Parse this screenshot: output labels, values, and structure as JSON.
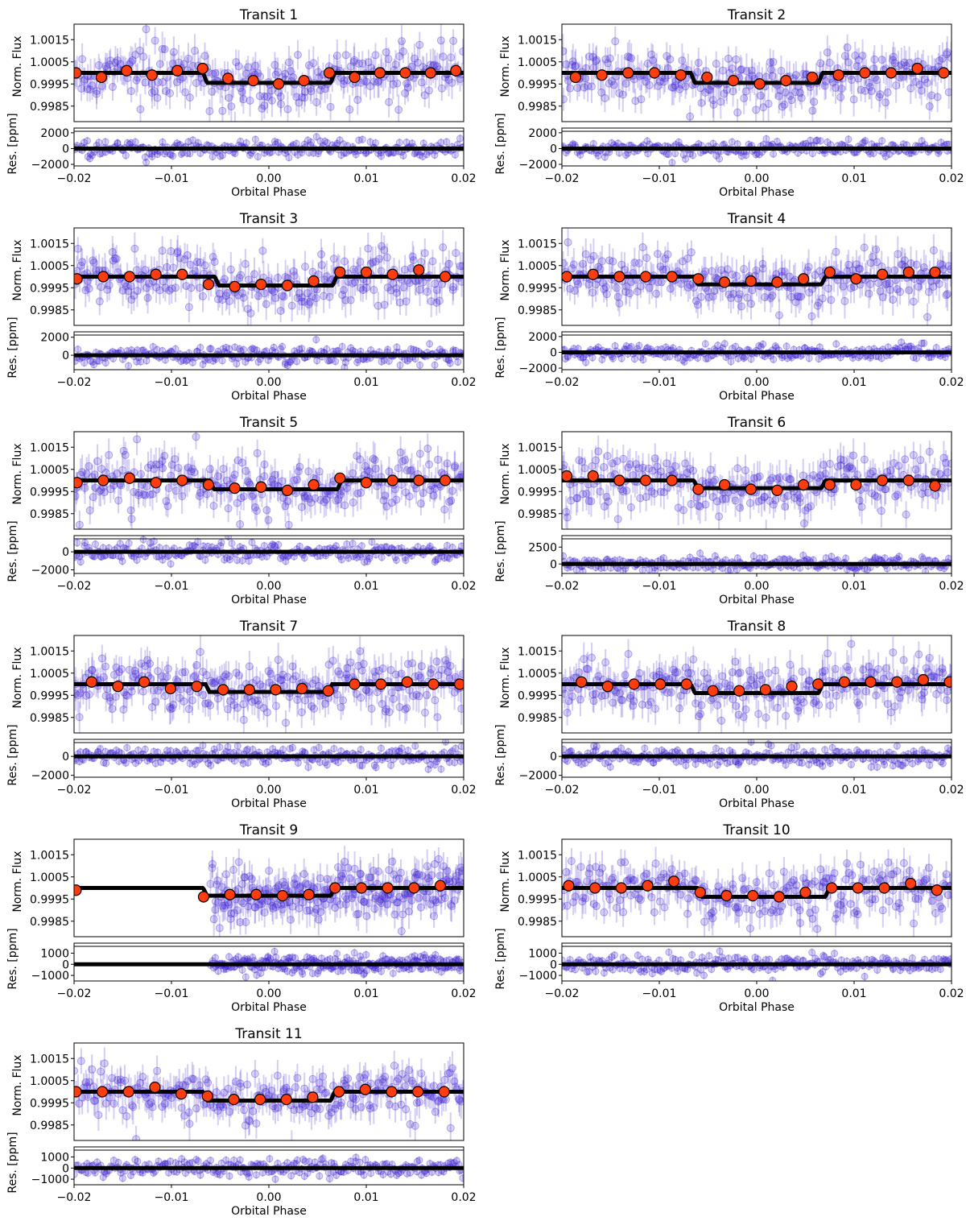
{
  "figure": {
    "x_tick_labels": [
      "−0.02",
      "−0.01",
      "0.00",
      "0.01",
      "0.02"
    ],
    "colors": {
      "data_points": "#3a1fd1",
      "binned_points": "#ff3b10",
      "model_line": "#000000"
    }
  },
  "chart_data": [
    {
      "type": "scatter",
      "title": "Transit 1",
      "xlabel": "Orbital Phase",
      "ylabel_flux": "Norm. Flux",
      "ylabel_res": "Res. [ppm]",
      "xlim": [
        -0.02,
        0.02
      ],
      "flux_ylim": [
        0.9978,
        1.0022
      ],
      "flux_yticks": [
        "1.0015",
        "1.0005",
        "0.9995",
        "0.9985"
      ],
      "res_ylim": [
        -2200,
        2600
      ],
      "res_yticks": [
        "2000",
        "0",
        "−2000"
      ],
      "model": {
        "t14": 0.0135,
        "ingress": 0.0004,
        "depth": 0.00045,
        "center": 0.0
      },
      "binned": {
        "x": [
          -0.0198,
          -0.0172,
          -0.0146,
          -0.012,
          -0.0094,
          -0.0068,
          -0.0042,
          -0.0016,
          0.001,
          0.0036,
          0.0062,
          0.0088,
          0.0114,
          0.014,
          0.0166,
          0.0192
        ],
        "y": [
          1.0,
          0.9998,
          1.0001,
          0.9999,
          1.0001,
          1.0002,
          0.99975,
          0.99965,
          0.9995,
          0.99965,
          1.0,
          0.9998,
          1.0,
          1.0,
          1.0,
          1.0001
        ]
      },
      "scatter_ppm": 600,
      "res_ppm": 500,
      "phase_start": -0.02
    },
    {
      "type": "scatter",
      "title": "Transit 2",
      "xlabel": "Orbital Phase",
      "ylabel_flux": "Norm. Flux",
      "ylabel_res": "Res. [ppm]",
      "xlim": [
        -0.02,
        0.02
      ],
      "flux_ylim": [
        0.9978,
        1.0022
      ],
      "flux_yticks": [
        "1.0015",
        "1.0005",
        "0.9995",
        "0.9985"
      ],
      "res_ylim": [
        -2200,
        2600
      ],
      "res_yticks": [
        "2000",
        "0",
        "−2000"
      ],
      "model": {
        "t14": 0.0135,
        "ingress": 0.0004,
        "depth": 0.00045,
        "center": 0.0
      },
      "binned": {
        "x": [
          -0.0186,
          -0.0159,
          -0.0132,
          -0.0105,
          -0.0078,
          -0.0051,
          -0.0024,
          0.0003,
          0.003,
          0.0057,
          0.0084,
          0.0111,
          0.0138,
          0.0165,
          0.0192
        ],
        "y": [
          0.9998,
          0.9999,
          1.0,
          1.0,
          0.9999,
          0.9998,
          0.99965,
          0.9995,
          0.99965,
          0.9998,
          0.9999,
          1.0,
          1.0,
          1.0002,
          1.0
        ]
      },
      "scatter_ppm": 600,
      "res_ppm": 500,
      "phase_start": -0.02
    },
    {
      "type": "scatter",
      "title": "Transit 3",
      "xlabel": "Orbital Phase",
      "ylabel_flux": "Norm. Flux",
      "ylabel_res": "Res. [ppm]",
      "xlim": [
        -0.02,
        0.02
      ],
      "flux_ylim": [
        0.9978,
        1.0022
      ],
      "flux_yticks": [
        "1.0015",
        "1.0005",
        "0.9995",
        "0.9985"
      ],
      "res_ylim": [
        -1600,
        2600
      ],
      "res_yticks": [
        "2000",
        "0"
      ],
      "model": {
        "t14": 0.0125,
        "ingress": 0.0004,
        "depth": 0.0004,
        "center": 0.0007
      },
      "binned": {
        "x": [
          -0.0197,
          -0.017,
          -0.0143,
          -0.0116,
          -0.0089,
          -0.0062,
          -0.0035,
          -0.0008,
          0.0019,
          0.0046,
          0.0073,
          0.01,
          0.0127,
          0.0154,
          0.0181
        ],
        "y": [
          0.9999,
          1.0,
          1.0,
          1.0001,
          1.0001,
          0.99965,
          0.99955,
          0.99965,
          0.9996,
          0.9998,
          1.0002,
          1.0002,
          1.0001,
          1.0003,
          1.0
        ]
      },
      "scatter_ppm": 600,
      "res_ppm": 500,
      "phase_start": -0.02
    },
    {
      "type": "scatter",
      "title": "Transit 4",
      "xlabel": "Orbital Phase",
      "ylabel_flux": "Norm. Flux",
      "ylabel_res": "Res. [ppm]",
      "xlim": [
        -0.02,
        0.02
      ],
      "flux_ylim": [
        0.9978,
        1.0022
      ],
      "flux_yticks": [
        "1.0015",
        "1.0005",
        "0.9995",
        "0.9985"
      ],
      "res_ylim": [
        -2200,
        2600
      ],
      "res_yticks": [
        "2000",
        "0",
        "−2000"
      ],
      "model": {
        "t14": 0.0135,
        "ingress": 0.0004,
        "depth": 0.00035,
        "center": 0.0003
      },
      "binned": {
        "x": [
          -0.0195,
          -0.0168,
          -0.0141,
          -0.0114,
          -0.0087,
          -0.006,
          -0.0033,
          -0.0006,
          0.0021,
          0.0048,
          0.0075,
          0.0102,
          0.0129,
          0.0156,
          0.0183
        ],
        "y": [
          1.0,
          1.0001,
          1.0,
          1.0,
          1.0,
          0.9999,
          0.99975,
          0.9998,
          0.99975,
          0.9999,
          1.0002,
          0.9999,
          1.0001,
          1.0002,
          1.0002
        ]
      },
      "scatter_ppm": 600,
      "res_ppm": 500,
      "phase_start": -0.02
    },
    {
      "type": "scatter",
      "title": "Transit 5",
      "xlabel": "Orbital Phase",
      "ylabel_flux": "Norm. Flux",
      "ylabel_res": "Res. [ppm]",
      "xlim": [
        -0.02,
        0.02
      ],
      "flux_ylim": [
        0.9978,
        1.0022
      ],
      "flux_yticks": [
        "1.0015",
        "1.0005",
        "0.9995",
        "0.9985"
      ],
      "res_ylim": [
        -2400,
        1800
      ],
      "res_yticks": [
        "0",
        "−2000"
      ],
      "model": {
        "t14": 0.0135,
        "ingress": 0.0004,
        "depth": 0.0004,
        "center": 0.0007
      },
      "binned": {
        "x": [
          -0.0197,
          -0.017,
          -0.0143,
          -0.0116,
          -0.0089,
          -0.0062,
          -0.0035,
          -0.0008,
          0.0019,
          0.0046,
          0.0073,
          0.01,
          0.0127,
          0.0154,
          0.0181
        ],
        "y": [
          0.9999,
          1.0,
          1.0001,
          0.9999,
          1.0,
          0.9998,
          0.99965,
          0.9997,
          0.99955,
          0.9998,
          1.0001,
          0.9999,
          1.0,
          1.0,
          1.0
        ]
      },
      "scatter_ppm": 600,
      "res_ppm": 500,
      "phase_start": -0.02
    },
    {
      "type": "scatter",
      "title": "Transit 6",
      "xlabel": "Orbital Phase",
      "ylabel_flux": "Norm. Flux",
      "ylabel_res": "Res. [ppm]",
      "xlim": [
        -0.02,
        0.02
      ],
      "flux_ylim": [
        0.9978,
        1.0022
      ],
      "flux_yticks": [
        "1.0015",
        "1.0005",
        "0.9995",
        "0.9985"
      ],
      "res_ylim": [
        -1400,
        4200
      ],
      "res_yticks": [
        "2500",
        "0"
      ],
      "model": {
        "t14": 0.0135,
        "ingress": 0.0004,
        "depth": 0.00035,
        "center": 0.0003
      },
      "binned": {
        "x": [
          -0.0195,
          -0.0168,
          -0.0141,
          -0.0114,
          -0.0087,
          -0.006,
          -0.0033,
          -0.0006,
          0.0021,
          0.0048,
          0.0075,
          0.0102,
          0.0129,
          0.0156,
          0.0183
        ],
        "y": [
          1.0002,
          1.0002,
          1.0,
          1.0,
          1.0,
          0.9996,
          0.9998,
          0.9996,
          0.99955,
          0.9998,
          0.9998,
          0.9998,
          1.0,
          1.0,
          0.99975
        ]
      },
      "scatter_ppm": 600,
      "res_ppm": 500,
      "phase_start": -0.02
    },
    {
      "type": "scatter",
      "title": "Transit 7",
      "xlabel": "Orbital Phase",
      "ylabel_flux": "Norm. Flux",
      "ylabel_res": "Res. [ppm]",
      "xlim": [
        -0.02,
        0.02
      ],
      "flux_ylim": [
        0.9978,
        1.0022
      ],
      "flux_yticks": [
        "1.0015",
        "1.0005",
        "0.9995",
        "0.9985"
      ],
      "res_ylim": [
        -2200,
        1800
      ],
      "res_yticks": [
        "0",
        "−2000"
      ],
      "model": {
        "t14": 0.013,
        "ingress": 0.0004,
        "depth": 0.00035,
        "center": 0.0
      },
      "binned": {
        "x": [
          -0.0182,
          -0.0155,
          -0.0128,
          -0.0101,
          -0.0074,
          -0.0047,
          -0.002,
          0.0007,
          0.0034,
          0.0061,
          0.0088,
          0.0115,
          0.0142,
          0.0169,
          0.0196
        ],
        "y": [
          1.0001,
          0.9999,
          1.0001,
          0.9998,
          0.9999,
          0.99975,
          0.99975,
          0.99975,
          0.9998,
          0.9997,
          1.0,
          1.0,
          1.0001,
          1.0,
          1.0
        ]
      },
      "scatter_ppm": 600,
      "res_ppm": 500,
      "phase_start": -0.02
    },
    {
      "type": "scatter",
      "title": "Transit 8",
      "xlabel": "Orbital Phase",
      "ylabel_flux": "Norm. Flux",
      "ylabel_res": "Res. [ppm]",
      "xlim": [
        -0.02,
        0.02
      ],
      "flux_ylim": [
        0.9978,
        1.0022
      ],
      "flux_yticks": [
        "1.0015",
        "1.0005",
        "0.9995",
        "0.9985"
      ],
      "res_ylim": [
        -2200,
        1800
      ],
      "res_yticks": [
        "0",
        "−2000"
      ],
      "model": {
        "t14": 0.0135,
        "ingress": 0.0004,
        "depth": 0.0004,
        "center": 0.0
      },
      "binned": {
        "x": [
          -0.018,
          -0.0153,
          -0.0126,
          -0.0099,
          -0.0072,
          -0.0045,
          -0.0018,
          0.0009,
          0.0036,
          0.0063,
          0.009,
          0.0117,
          0.0144,
          0.0171,
          0.0198
        ],
        "y": [
          1.0001,
          0.9999,
          1.0,
          1.0,
          1.0,
          0.9997,
          0.9997,
          0.99975,
          0.9999,
          1.0,
          1.0001,
          1.0001,
          1.0001,
          1.0002,
          1.0001
        ]
      },
      "scatter_ppm": 600,
      "res_ppm": 500,
      "phase_start": -0.02
    },
    {
      "type": "scatter",
      "title": "Transit 9",
      "xlabel": "Orbital Phase",
      "ylabel_flux": "Norm. Flux",
      "ylabel_res": "Res. [ppm]",
      "xlim": [
        -0.02,
        0.02
      ],
      "flux_ylim": [
        0.9978,
        1.0022
      ],
      "flux_yticks": [
        "1.0015",
        "1.0005",
        "0.9995",
        "0.9985"
      ],
      "res_ylim": [
        -1500,
        1900
      ],
      "res_yticks": [
        "1000",
        "0",
        "−1000"
      ],
      "model": {
        "t14": 0.0135,
        "ingress": 0.0004,
        "depth": 0.00035,
        "center": 0.0
      },
      "binned": {
        "x": [
          -0.0198,
          -0.0067,
          -0.004,
          -0.0013,
          0.0014,
          0.0041,
          0.0068,
          0.0095,
          0.0122,
          0.0149,
          0.0176
        ],
        "y": [
          0.9999,
          0.9996,
          0.9997,
          0.9997,
          0.99965,
          0.9997,
          1.0,
          1.0,
          1.0,
          1.0,
          1.0001
        ]
      },
      "scatter_ppm": 600,
      "res_ppm": 400,
      "phase_start": -0.006
    },
    {
      "type": "scatter",
      "title": "Transit 10",
      "xlabel": "Orbital Phase",
      "ylabel_flux": "Norm. Flux",
      "ylabel_res": "Res. [ppm]",
      "xlim": [
        -0.02,
        0.02
      ],
      "flux_ylim": [
        0.9978,
        1.0022
      ],
      "flux_yticks": [
        "1.0015",
        "1.0005",
        "0.9995",
        "0.9985"
      ],
      "res_ylim": [
        -1500,
        1900
      ],
      "res_yticks": [
        "1000",
        "0",
        "−1000"
      ],
      "model": {
        "t14": 0.0135,
        "ingress": 0.0004,
        "depth": 0.0004,
        "center": 0.0007
      },
      "binned": {
        "x": [
          -0.0193,
          -0.0166,
          -0.0139,
          -0.0112,
          -0.0085,
          -0.0058,
          -0.0031,
          -0.0004,
          0.0023,
          0.005,
          0.0077,
          0.0104,
          0.0131,
          0.0158,
          0.0185
        ],
        "y": [
          1.0001,
          1.0,
          1.0,
          1.0001,
          1.0003,
          0.9998,
          0.99965,
          0.99965,
          0.9996,
          0.9998,
          1.0,
          1.0,
          1.0,
          1.0002,
          0.9999
        ]
      },
      "scatter_ppm": 600,
      "res_ppm": 400,
      "phase_start": -0.02
    },
    {
      "type": "scatter",
      "title": "Transit 11",
      "xlabel": "Orbital Phase",
      "ylabel_flux": "Norm. Flux",
      "ylabel_res": "Res. [ppm]",
      "xlim": [
        -0.02,
        0.02
      ],
      "flux_ylim": [
        0.9978,
        1.0022
      ],
      "flux_yticks": [
        "1.0015",
        "1.0005",
        "0.9995",
        "0.9985"
      ],
      "res_ylim": [
        -1500,
        1900
      ],
      "res_yticks": [
        "1000",
        "0",
        "−1000"
      ],
      "model": {
        "t14": 0.0135,
        "ingress": 0.0004,
        "depth": 0.0004,
        "center": 0.0
      },
      "binned": {
        "x": [
          -0.0198,
          -0.0171,
          -0.0144,
          -0.0117,
          -0.009,
          -0.0063,
          -0.0036,
          -0.0009,
          0.0018,
          0.0045,
          0.0072,
          0.0099,
          0.0126,
          0.0153,
          0.018
        ],
        "y": [
          1.0,
          1.0,
          1.0,
          1.0002,
          0.9999,
          0.9998,
          0.99965,
          0.99965,
          0.99965,
          0.99975,
          1.0,
          1.0001,
          1.0,
          1.0,
          1.0
        ]
      },
      "scatter_ppm": 600,
      "res_ppm": 400,
      "phase_start": -0.02
    }
  ]
}
